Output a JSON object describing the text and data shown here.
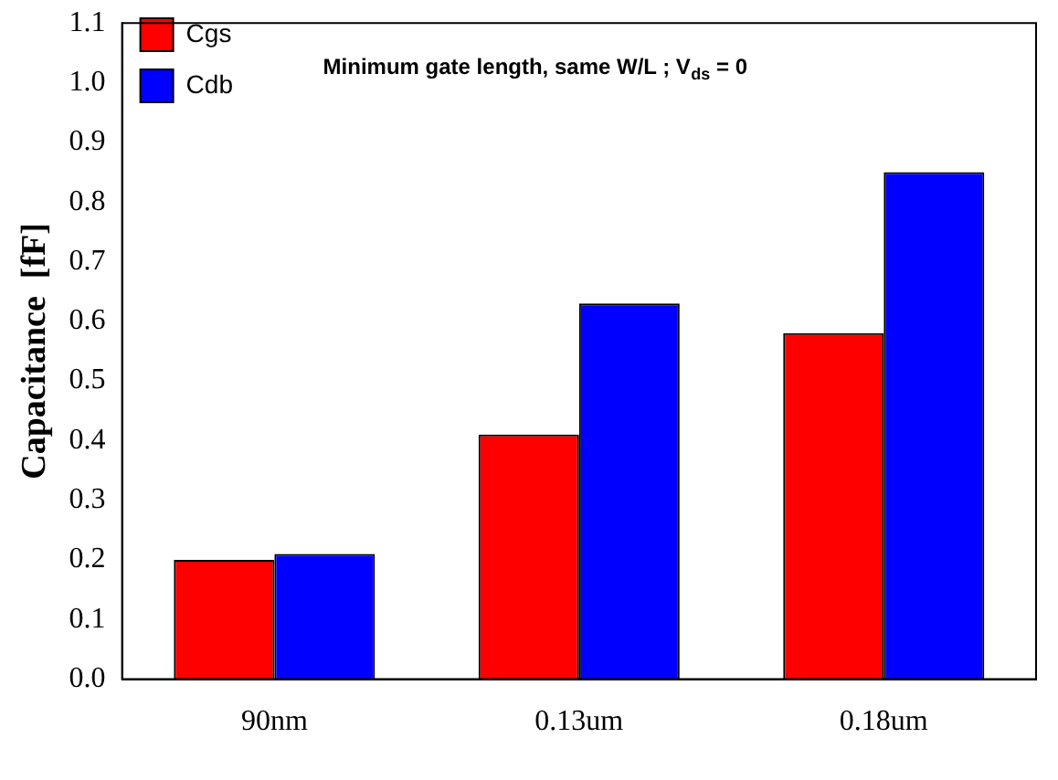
{
  "chart_data": {
    "type": "bar",
    "ylabel": "Capacitance  [fF]",
    "categories": [
      "90nm",
      "0.13um",
      "0.18um"
    ],
    "series": [
      {
        "name": "Cgs",
        "color": "#ff0000",
        "values": [
          0.2,
          0.41,
          0.58
        ]
      },
      {
        "name": "Cdb",
        "color": "#0000ff",
        "values": [
          0.21,
          0.63,
          0.85
        ]
      }
    ],
    "ylim": [
      0,
      1.1
    ],
    "yticks": [
      {
        "value": 0,
        "label": "0.0"
      },
      0.1,
      0.2,
      0.3,
      0.4,
      0.5,
      0.6,
      0.7,
      0.8,
      0.9,
      {
        "value": 1,
        "label": "1.0"
      },
      1.1
    ],
    "annotations": [
      "Minimum gate length, same W/L ; V$_{ds}$ = 0"
    ],
    "grid": false,
    "legend": "top left"
  }
}
